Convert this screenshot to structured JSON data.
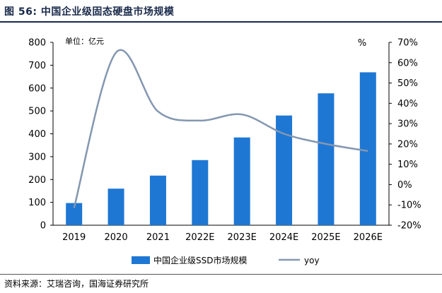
{
  "figure": {
    "title": "图 56:  中国企业级固态硬盘市场规模",
    "source": "资料来源：艾瑞咨询，国海证券研究所"
  },
  "chart_data": {
    "type": "bar",
    "title": "中国企业级固态硬盘市场规模",
    "categories": [
      "2019",
      "2020",
      "2021",
      "2022E",
      "2023E",
      "2024E",
      "2025E",
      "2026E"
    ],
    "series": [
      {
        "name": "中国企业级SSD市场规模",
        "type": "bar",
        "axis": "left",
        "color": "#1f77d4",
        "values": [
          97,
          160,
          217,
          285,
          384,
          480,
          577,
          669
        ]
      },
      {
        "name": "yoy",
        "type": "line",
        "axis": "right",
        "color": "#8497b0",
        "values": [
          -11.5,
          65,
          36,
          31.5,
          34.5,
          25,
          20,
          16.5
        ]
      }
    ],
    "left_axis": {
      "label": "单位：亿元",
      "min": 0,
      "max": 800,
      "step": 100,
      "ticks": [
        "0",
        "100",
        "200",
        "300",
        "400",
        "500",
        "600",
        "700",
        "800"
      ]
    },
    "right_axis": {
      "label": "%",
      "min": -20,
      "max": 70,
      "step": 10,
      "ticks": [
        "-20%",
        "-10%",
        "0%",
        "10%",
        "20%",
        "30%",
        "40%",
        "50%",
        "60%",
        "70%"
      ]
    },
    "legend": {
      "position": "bottom",
      "entries": [
        "中国企业级SSD市场规模",
        "yoy"
      ]
    },
    "grid": false
  }
}
